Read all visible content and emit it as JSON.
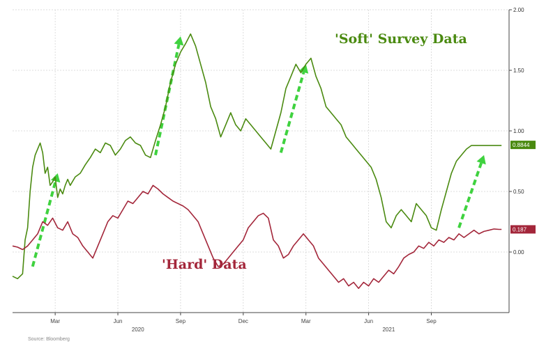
{
  "chart_data": {
    "type": "line",
    "ylim": [
      -0.5,
      2.0
    ],
    "y_ticks": [
      "2.00",
      "1.50",
      "1.00",
      "0.50",
      "0.00"
    ],
    "y_tick_values": [
      2.0,
      1.5,
      1.0,
      0.5,
      0.0
    ],
    "x_tick_labels": [
      "Mar",
      "Jun",
      "Sep",
      "Dec",
      "Mar",
      "Jun",
      "Sep"
    ],
    "x_tick_values": [
      2020.17,
      2020.42,
      2020.67,
      2020.92,
      2021.17,
      2021.42,
      2021.67
    ],
    "year_labels": [
      {
        "text": "2020",
        "x": 2020.5
      },
      {
        "text": "2021",
        "x": 2021.5
      }
    ],
    "xlim": [
      2020.0,
      2021.98
    ],
    "grid": true,
    "series": [
      {
        "name": "'Soft' Survey Data",
        "color": "#4a8a10",
        "last_value": "0.8844",
        "x": [
          2020.0,
          2020.02,
          2020.04,
          2020.05,
          2020.06,
          2020.07,
          2020.08,
          2020.09,
          2020.1,
          2020.11,
          2020.12,
          2020.13,
          2020.14,
          2020.15,
          2020.16,
          2020.17,
          2020.18,
          2020.19,
          2020.2,
          2020.21,
          2020.22,
          2020.23,
          2020.25,
          2020.27,
          2020.29,
          2020.31,
          2020.33,
          2020.35,
          2020.37,
          2020.39,
          2020.41,
          2020.43,
          2020.45,
          2020.47,
          2020.49,
          2020.51,
          2020.53,
          2020.55,
          2020.57,
          2020.59,
          2020.61,
          2020.63,
          2020.65,
          2020.67,
          2020.69,
          2020.71,
          2020.73,
          2020.75,
          2020.77,
          2020.79,
          2020.81,
          2020.83,
          2020.85,
          2020.87,
          2020.89,
          2020.91,
          2020.93,
          2020.95,
          2020.97,
          2020.99,
          2021.01,
          2021.03,
          2021.05,
          2021.07,
          2021.09,
          2021.11,
          2021.13,
          2021.15,
          2021.17,
          2021.19,
          2021.21,
          2021.23,
          2021.25,
          2021.27,
          2021.29,
          2021.31,
          2021.33,
          2021.35,
          2021.37,
          2021.39,
          2021.41,
          2021.43,
          2021.45,
          2021.47,
          2021.49,
          2021.51,
          2021.53,
          2021.55,
          2021.57,
          2021.59,
          2021.61,
          2021.63,
          2021.65,
          2021.67,
          2021.69,
          2021.71,
          2021.73,
          2021.75,
          2021.77,
          2021.79,
          2021.81,
          2021.83,
          2021.85,
          2021.87,
          2021.89,
          2021.91,
          2021.93,
          2021.95
        ],
        "values": [
          -0.2,
          -0.22,
          -0.18,
          0.1,
          0.2,
          0.5,
          0.7,
          0.8,
          0.85,
          0.9,
          0.82,
          0.65,
          0.7,
          0.55,
          0.58,
          0.62,
          0.45,
          0.52,
          0.48,
          0.55,
          0.6,
          0.55,
          0.62,
          0.65,
          0.72,
          0.78,
          0.85,
          0.82,
          0.9,
          0.88,
          0.8,
          0.85,
          0.92,
          0.95,
          0.9,
          0.88,
          0.8,
          0.78,
          0.92,
          1.05,
          1.2,
          1.4,
          1.55,
          1.65,
          1.72,
          1.8,
          1.7,
          1.55,
          1.4,
          1.2,
          1.1,
          0.95,
          1.05,
          1.15,
          1.05,
          1.0,
          1.1,
          1.05,
          1.0,
          0.95,
          0.9,
          0.85,
          1.0,
          1.15,
          1.35,
          1.45,
          1.55,
          1.48,
          1.55,
          1.6,
          1.45,
          1.35,
          1.2,
          1.15,
          1.1,
          1.05,
          0.95,
          0.9,
          0.85,
          0.8,
          0.75,
          0.7,
          0.6,
          0.45,
          0.25,
          0.2,
          0.3,
          0.35,
          0.3,
          0.25,
          0.4,
          0.35,
          0.3,
          0.2,
          0.18,
          0.35,
          0.5,
          0.65,
          0.75,
          0.8,
          0.85,
          0.88,
          0.88,
          0.88,
          0.88,
          0.88,
          0.88,
          0.88
        ]
      },
      {
        "name": "'Hard' Data",
        "color": "#a3263a",
        "last_value": "0.187",
        "x": [
          2020.0,
          2020.02,
          2020.04,
          2020.06,
          2020.08,
          2020.1,
          2020.12,
          2020.14,
          2020.16,
          2020.18,
          2020.2,
          2020.22,
          2020.24,
          2020.26,
          2020.28,
          2020.3,
          2020.32,
          2020.34,
          2020.36,
          2020.38,
          2020.4,
          2020.42,
          2020.44,
          2020.46,
          2020.48,
          2020.5,
          2020.52,
          2020.54,
          2020.56,
          2020.58,
          2020.6,
          2020.62,
          2020.64,
          2020.66,
          2020.68,
          2020.7,
          2020.72,
          2020.74,
          2020.76,
          2020.78,
          2020.8,
          2020.82,
          2020.84,
          2020.86,
          2020.88,
          2020.9,
          2020.92,
          2020.94,
          2020.96,
          2020.98,
          2021.0,
          2021.02,
          2021.04,
          2021.06,
          2021.08,
          2021.1,
          2021.12,
          2021.14,
          2021.16,
          2021.18,
          2021.2,
          2021.22,
          2021.24,
          2021.26,
          2021.28,
          2021.3,
          2021.32,
          2021.34,
          2021.36,
          2021.38,
          2021.4,
          2021.42,
          2021.44,
          2021.46,
          2021.48,
          2021.5,
          2021.52,
          2021.54,
          2021.56,
          2021.58,
          2021.6,
          2021.62,
          2021.64,
          2021.66,
          2021.68,
          2021.7,
          2021.72,
          2021.74,
          2021.76,
          2021.78,
          2021.8,
          2021.82,
          2021.84,
          2021.86,
          2021.88,
          2021.9,
          2021.92,
          2021.94,
          2021.95
        ],
        "values": [
          0.05,
          0.04,
          0.02,
          0.05,
          0.1,
          0.15,
          0.25,
          0.22,
          0.28,
          0.2,
          0.18,
          0.25,
          0.15,
          0.12,
          0.05,
          0.0,
          -0.05,
          0.05,
          0.15,
          0.25,
          0.3,
          0.28,
          0.35,
          0.42,
          0.4,
          0.45,
          0.5,
          0.48,
          0.55,
          0.52,
          0.48,
          0.45,
          0.42,
          0.4,
          0.38,
          0.35,
          0.3,
          0.25,
          0.15,
          0.05,
          -0.05,
          -0.12,
          -0.1,
          -0.05,
          0.0,
          0.05,
          0.1,
          0.2,
          0.25,
          0.3,
          0.32,
          0.28,
          0.1,
          0.05,
          -0.05,
          -0.02,
          0.05,
          0.1,
          0.15,
          0.1,
          0.05,
          -0.05,
          -0.1,
          -0.15,
          -0.2,
          -0.25,
          -0.22,
          -0.28,
          -0.25,
          -0.3,
          -0.25,
          -0.28,
          -0.22,
          -0.25,
          -0.2,
          -0.15,
          -0.18,
          -0.12,
          -0.05,
          -0.02,
          0.0,
          0.05,
          0.03,
          0.08,
          0.05,
          0.1,
          0.08,
          0.12,
          0.1,
          0.15,
          0.12,
          0.15,
          0.18,
          0.15,
          0.17,
          0.18,
          0.19,
          0.187,
          0.187
        ]
      }
    ],
    "annotations": [
      {
        "text": "'Soft' Survey Data",
        "color": "#4a8a10"
      },
      {
        "text": "'Hard' Data",
        "color": "#a3263a"
      }
    ],
    "arrows": [
      {
        "from": [
          2020.08,
          -0.12
        ],
        "to": [
          2020.18,
          0.65
        ]
      },
      {
        "from": [
          2020.57,
          0.8
        ],
        "to": [
          2020.67,
          1.78
        ]
      },
      {
        "from": [
          2021.07,
          0.82
        ],
        "to": [
          2021.17,
          1.55
        ]
      },
      {
        "from": [
          2021.78,
          0.2
        ],
        "to": [
          2021.88,
          0.8
        ]
      }
    ],
    "footer_text": "Source: Bloomberg"
  }
}
